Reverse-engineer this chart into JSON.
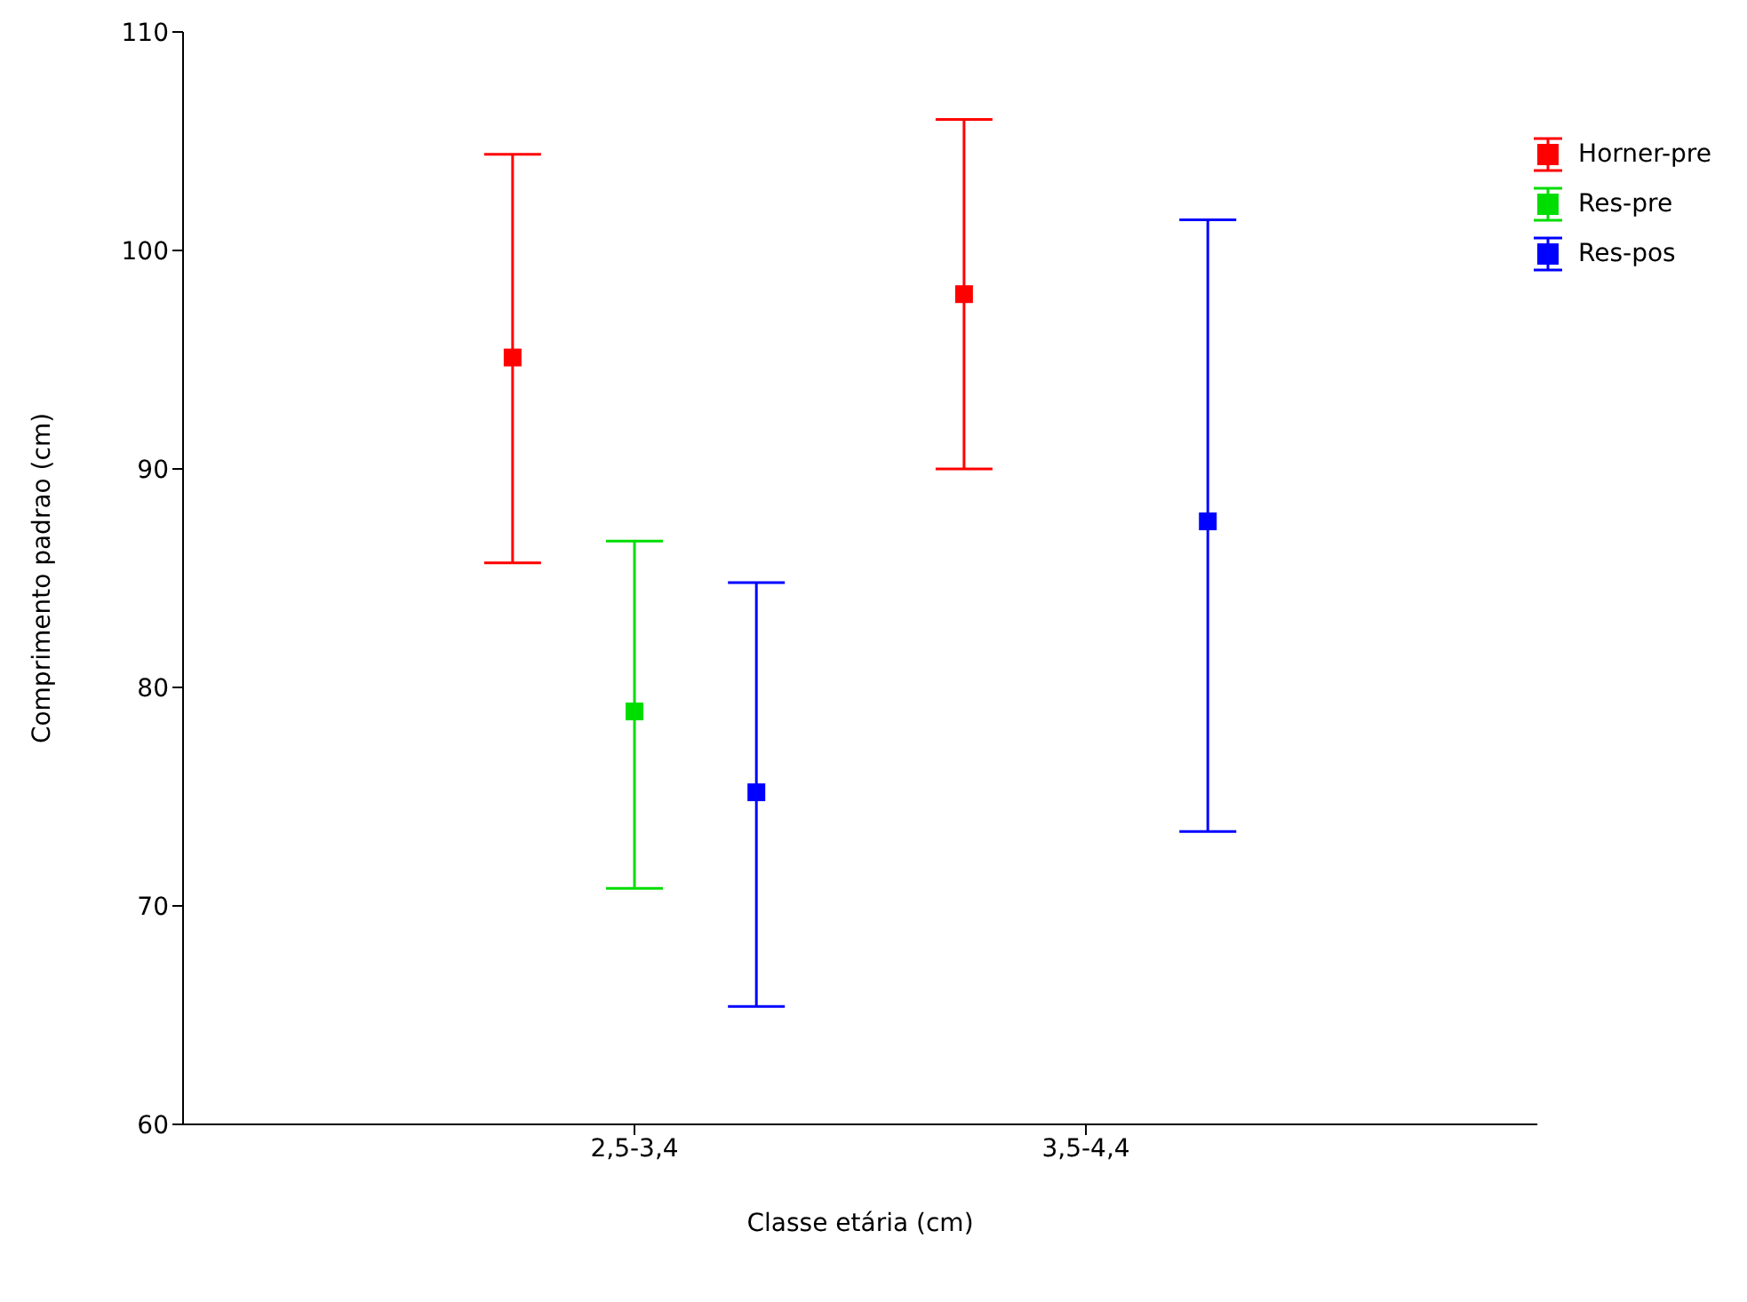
{
  "chart_data": {
    "type": "scatter",
    "xlabel": "Classe etária (cm)",
    "ylabel": "Comprimento padrao (cm)",
    "categories": [
      "2,5-3,4",
      "3,5-4,4"
    ],
    "series": [
      {
        "name": "Horner-pre",
        "color": "#ff0000",
        "values": [
          95.1,
          98.0
        ],
        "errors": [
          [
            85.7,
            104.4
          ],
          [
            90.0,
            106.0
          ]
        ]
      },
      {
        "name": "Res-pre",
        "color": "#00dd00",
        "values": [
          78.9,
          null
        ],
        "errors": [
          [
            70.8,
            86.7
          ],
          null
        ]
      },
      {
        "name": "Res-pos",
        "color": "#0000ff",
        "values": [
          75.2,
          87.6
        ],
        "errors": [
          [
            65.4,
            84.8
          ],
          [
            73.4,
            101.4
          ]
        ]
      }
    ],
    "ylim": [
      60,
      110
    ],
    "yticks": [
      60,
      70,
      80,
      90,
      100,
      110
    ],
    "grid": false,
    "legend": "top right",
    "marker": "square"
  }
}
